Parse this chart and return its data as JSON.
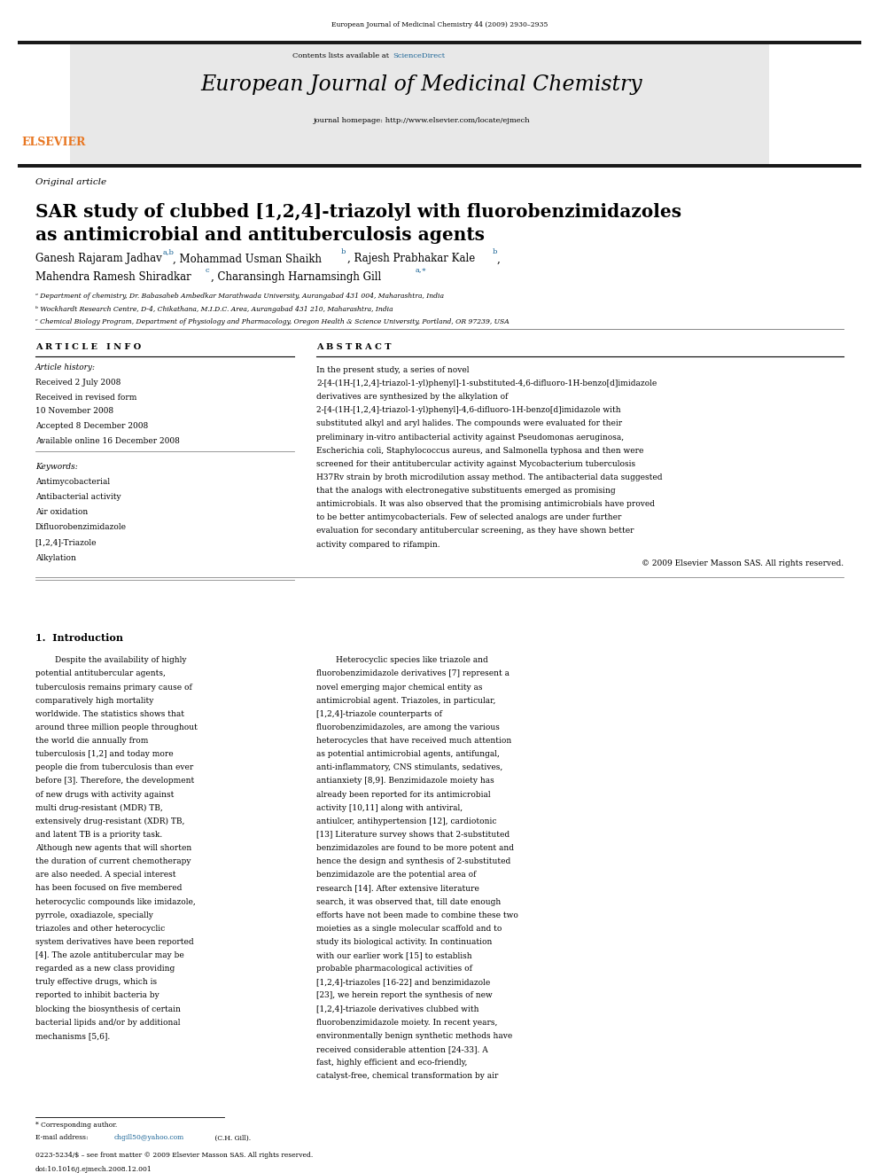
{
  "page_width": 9.92,
  "page_height": 13.23,
  "background_color": "#ffffff",
  "top_journal_line": "European Journal of Medicinal Chemistry 44 (2009) 2930–2935",
  "journal_name": "European Journal of Medicinal Chemistry",
  "contents_text": "Contents lists available at",
  "sciencedirect_text": "ScienceDirect",
  "sciencedirect_color": "#1a6496",
  "journal_homepage": "journal homepage: http://www.elsevier.com/locate/ejmech",
  "article_type": "Original article",
  "title_line1": "SAR study of clubbed [1,2,4]-triazolyl with fluorobenzimidazoles",
  "title_line2": "as antimicrobial and antituberculosis agents",
  "affil_a": "ᵃ Department of chemistry, Dr. Babasaheb Ambedkar Marathwada University, Aurangabad 431 004, Maharashtra, India",
  "affil_b": "ᵇ Wockhardt Research Centre, D-4, Chikathana, M.I.D.C. Area, Aurangabad 431 210, Maharashtra, India",
  "affil_c": "ᶜ Chemical Biology Program, Department of Physiology and Pharmacology, Oregon Health & Science University, Portland, OR 97239, USA",
  "article_info_header": "A R T I C L E   I N F O",
  "abstract_header": "A B S T R A C T",
  "article_history_header": "Article history:",
  "received_date": "Received 2 July 2008",
  "revised_date": "Received in revised form",
  "revised_date2": "10 November 2008",
  "accepted_date": "Accepted 8 December 2008",
  "online_date": "Available online 16 December 2008",
  "keywords_header": "Keywords:",
  "keyword1": "Antimycobacterial",
  "keyword2": "Antibacterial activity",
  "keyword3": "Air oxidation",
  "keyword4": "Difluorobenzimidazole",
  "keyword5": "[1,2,4]-Triazole",
  "keyword6": "Alkylation",
  "abstract_text": "In the present study, a series of novel 2-[4-(1H-[1,2,4]-triazol-1-yl)phenyl]-1-substituted-4,6-difluoro-1H-benzo[d]imidazole derivatives are synthesized by the alkylation of 2-[4-(1H-[1,2,4]-triazol-1-yl)phenyl]-4,6-difluoro-1H-benzo[d]imidazole with substituted alkyl and aryl halides. The compounds were evaluated for their preliminary in-vitro antibacterial activity against Pseudomonas aeruginosa, Escherichia coli, Staphylococcus aureus, and Salmonella typhosa and then were screened for their antitubercular activity against Mycobacterium tuberculosis H37Rv strain by broth microdilution assay method. The antibacterial data suggested that the analogs with electronegative substituents emerged as promising antimicrobials. It was also observed that the promising antimicrobials have proved to be better antimycobacterials. Few of selected analogs are under further evaluation for secondary antitubercular screening, as they have shown better activity compared to rifampin.",
  "copyright_text": "© 2009 Elsevier Masson SAS. All rights reserved.",
  "intro_header": "1.  Introduction",
  "intro_left": "Despite the availability of highly potential antitubercular agents, tuberculosis remains primary cause of comparatively high mortality worldwide. The statistics shows that around three million people throughout the world die annually from tuberculosis [1,2] and today more people die from tuberculosis than ever before [3]. Therefore, the development of new drugs with activity against multi drug-resistant (MDR) TB, extensively drug-resistant (XDR) TB, and latent TB is a priority task. Although new agents that will shorten the duration of current chemotherapy are also needed. A special interest has been focused on five membered heterocyclic compounds like imidazole, pyrrole, oxadiazole, specially triazoles and other heterocyclic system derivatives have been reported [4]. The azole antitubercular may be regarded as a new class providing truly effective drugs, which is reported to inhibit bacteria by blocking the biosynthesis of certain bacterial lipids and/or by additional mechanisms [5,6].",
  "intro_right": "Heterocyclic species like triazole and fluorobenzimidazole derivatives [7] represent a novel emerging major chemical entity as antimicrobial agent. Triazoles, in particular, [1,2,4]-triazole counterparts of fluorobenzimidazoles, are among the various heterocycles that have received much attention as potential antimicrobial agents, antifungal, anti-inflammatory, CNS stimulants, sedatives, antianxiety [8,9]. Benzimidazole moiety has already been reported for its antimicrobial activity [10,11] along with antiviral, antiulcer, antihypertension [12], cardiotonic [13] Literature survey shows that 2-substituted benzimidazoles are found to be more potent and hence the design and synthesis of 2-substituted benzimidazole are the potential area of research [14]. After extensive literature search, it was observed that, till date enough efforts have not been made to combine these two moieties as a single molecular scaffold and to study its biological activity. In continuation with our earlier work [15] to establish probable pharmacological activities of [1,2,4]-triazoles [16-22] and benzimidazole [23], we herein report the synthesis of new [1,2,4]-triazole derivatives clubbed with fluorobenzimidazole moiety. In recent years, environmentally benign synthetic methods have received considerable attention [24-33]. A fast, highly efficient and eco-friendly, catalyst-free, chemical transformation by air",
  "corresponding_note": "* Corresponding author.",
  "email_label": "E-mail address: ",
  "email_link": "chgill50@yahoo.com",
  "email_suffix": " (C.H. Gill).",
  "email_color": "#1a6496",
  "footer_left": "0223-5234/$ – see front matter © 2009 Elsevier Masson SAS. All rights reserved.",
  "footer_doi": "doi:10.1016/j.ejmech.2008.12.001",
  "header_bg": "#e8e8e8",
  "elsevier_orange": "#e87722",
  "black_bar_color": "#1a1a1a",
  "thin_line_color": "#888888"
}
